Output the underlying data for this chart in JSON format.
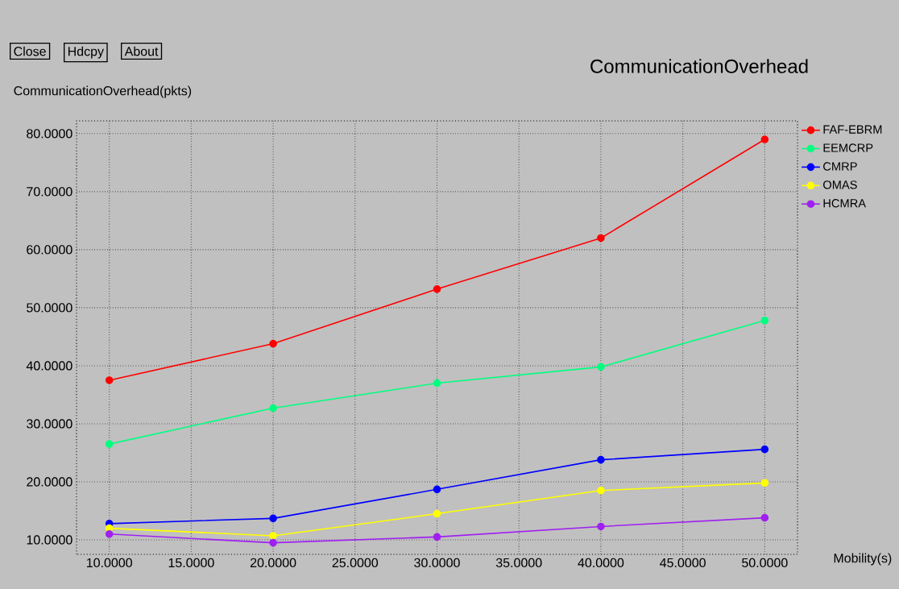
{
  "chart_data": {
    "type": "line",
    "title": "CommunicationOverhead",
    "ylabel": "CommunicationOverhead(pkts)",
    "xlabel": "Mobility(s)",
    "annotations": [
      "Close",
      "Hdcpy",
      "About"
    ],
    "x": [
      10,
      20,
      30,
      40,
      50
    ],
    "series": [
      {
        "name": "FAF-EBRM",
        "color": "#ff0000",
        "values": [
          37.5,
          43.8,
          53.2,
          62.0,
          79.0
        ]
      },
      {
        "name": "EEMCRP",
        "color": "#00ff7f",
        "values": [
          26.5,
          32.7,
          37.0,
          39.8,
          47.8
        ]
      },
      {
        "name": "CMRP",
        "color": "#0000ff",
        "values": [
          12.8,
          13.7,
          18.7,
          23.8,
          25.6
        ]
      },
      {
        "name": "OMAS",
        "color": "#ffff00",
        "values": [
          12.0,
          10.7,
          14.5,
          18.5,
          19.8
        ]
      },
      {
        "name": "HCMRA",
        "color": "#a020f0",
        "values": [
          11.0,
          9.5,
          10.5,
          12.3,
          13.8
        ]
      }
    ],
    "xlim": [
      8,
      52
    ],
    "ylim": [
      7.5,
      82.2
    ],
    "xticks": [
      {
        "value": 10,
        "label": "10.0000"
      },
      {
        "value": 15,
        "label": "15.0000"
      },
      {
        "value": 20,
        "label": "20.0000"
      },
      {
        "value": 25,
        "label": "25.0000"
      },
      {
        "value": 30,
        "label": "30.0000"
      },
      {
        "value": 35,
        "label": "35.0000"
      },
      {
        "value": 40,
        "label": "40.0000"
      },
      {
        "value": 45,
        "label": "45.0000"
      },
      {
        "value": 50,
        "label": "50.0000"
      }
    ],
    "yticks": [
      {
        "value": 10,
        "label": "10.0000"
      },
      {
        "value": 20,
        "label": "20.0000"
      },
      {
        "value": 30,
        "label": "30.0000"
      },
      {
        "value": 40,
        "label": "40.0000"
      },
      {
        "value": 50,
        "label": "50.0000"
      },
      {
        "value": 60,
        "label": "60.0000"
      },
      {
        "value": 70,
        "label": "70.0000"
      },
      {
        "value": 80,
        "label": "80.0000"
      }
    ],
    "grid": true,
    "legend": "top right",
    "marker": "circle",
    "line_style": "solid"
  }
}
